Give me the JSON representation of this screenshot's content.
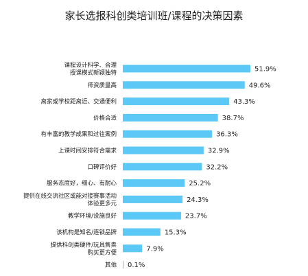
{
  "chart_data": {
    "type": "bar",
    "orientation": "horizontal",
    "title": "家长选报科创类培训班/课程的决策因素",
    "bar_color": "#5bc8f5",
    "xlim": [
      0,
      60
    ],
    "categories": [
      [
        "课程设计科学、合理",
        "授课模式新颖独特"
      ],
      [
        "师资质量高"
      ],
      [
        "离家或学校距离近、交通便利"
      ],
      [
        "价格合适"
      ],
      [
        "有丰富的教学成果和过往案例"
      ],
      [
        "上课时间安排符合需求"
      ],
      [
        "口碑评价好"
      ],
      [
        "服务态度好，细心、有耐心"
      ],
      [
        "提供在线交流社区或能对接赛事活动",
        "体验更多元"
      ],
      [
        "教学环境/设施良好"
      ],
      [
        "该机构是知名/连锁品牌"
      ],
      [
        "提供科创类硬件/玩具售卖",
        "购买更方便"
      ],
      [
        "其他"
      ]
    ],
    "values": [
      51.9,
      49.6,
      43.3,
      38.7,
      36.3,
      32.9,
      32.2,
      25.2,
      24.3,
      23.7,
      15.3,
      7.9,
      0.1
    ],
    "value_labels": [
      "51.9%",
      "49.6%",
      "43.3%",
      "38.7%",
      "36.3%",
      "32.9%",
      "32.2%",
      "25.2%",
      "24.3%",
      "23.7%",
      "15.3%",
      "7.9%",
      "0.1%"
    ]
  }
}
